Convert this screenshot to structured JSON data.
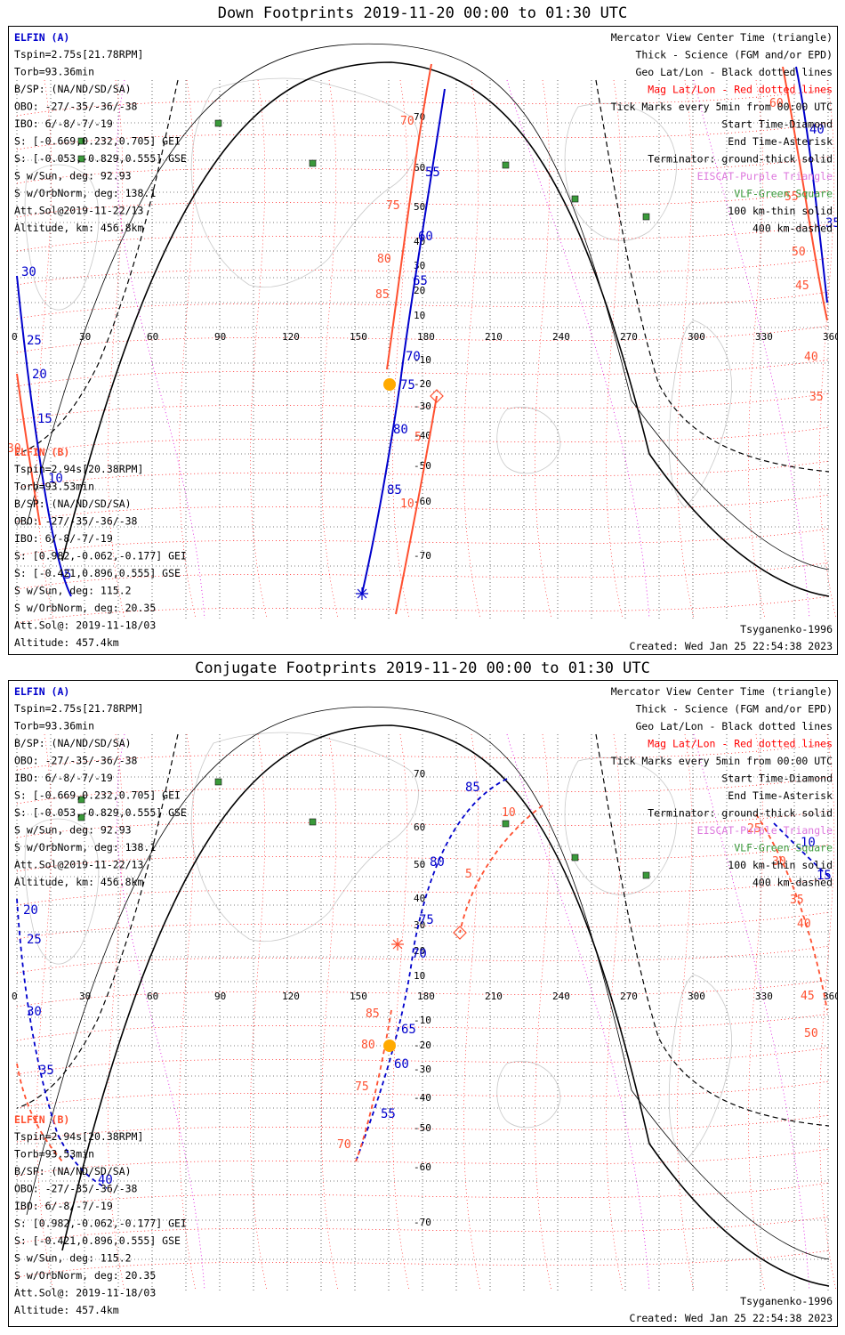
{
  "titles": {
    "top": "Down Footprints 2019-11-20 00:00 to 01:30 UTC",
    "bottom": "Conjugate Footprints 2019-11-20 00:00 to 01:30 UTC"
  },
  "colors": {
    "elfin_a": "#0000cc",
    "elfin_b": "#ff5030",
    "mag_grid": "#ff0000",
    "lshell": "#dd00dd",
    "station": "#3a9a3a",
    "sun_marker": "#ffaa00",
    "terminator": "#000000"
  },
  "info_a": {
    "name": "ELFIN (A)",
    "lines": [
      "Tspin=2.75s[21.78RPM]",
      "Torb=93.36min",
      "B/SP: (NA/ND/SD/SA)",
      "OBO: -27/-35/-36/-38",
      "IBO: 6/-8/-7/-19",
      "S: [-0.669,0.232,0.705] GEI",
      "S: [-0.053,-0.829,0.555] GSE",
      "S w/Sun, deg: 92.93",
      "S w/OrbNorm, deg: 138.1",
      "Att.Sol@2019-11-22/13",
      "Altitude, km: 456.8km"
    ]
  },
  "info_b": {
    "name": "ELFIN (B)",
    "lines": [
      "Tspin=2.94s[20.38RPM]",
      "Torb=93.53min",
      "B/SP: (NA/ND/SD/SA)",
      "OBO: -27/-35/-36/-38",
      "IBO: 6/-8/-7/-19",
      "S: [0.982,-0.062,-0.177] GEI",
      "S: [-0.421,0.896,0.555] GSE",
      "S w/Sun, deg: 115.2",
      "S w/OrbNorm, deg: 20.35",
      "Att.Sol@: 2019-11-18/03",
      "Altitude: 457.4km"
    ]
  },
  "legend": [
    {
      "text": "Mercator View Center Time (triangle)",
      "color": "#000000"
    },
    {
      "text": "Thick - Science (FGM and/or EPD)",
      "color": "#000000"
    },
    {
      "text": "Geo Lat/Lon - Black dotted lines",
      "color": "#000000"
    },
    {
      "text": "Mag Lat/Lon - Red dotted lines",
      "color": "#ff0000"
    },
    {
      "text": "Tick Marks every 5min from 00:00 UTC",
      "color": "#000000"
    },
    {
      "text": "Start Time-Diamond",
      "color": "#000000"
    },
    {
      "text": "End Time-Asterisk",
      "color": "#000000"
    },
    {
      "text": "Terminator: ground-thick solid",
      "color": "#000000"
    },
    {
      "text": "EISCAT-Purple Triangle",
      "color": "#dd77dd"
    },
    {
      "text": "VLF-Green Square",
      "color": "#3a9a3a"
    },
    {
      "text": "100 km-thin solid",
      "color": "#000000"
    },
    {
      "text": "400 km-dashed",
      "color": "#000000"
    }
  ],
  "footer": {
    "model": "Tsyganenko-1996",
    "created": "Created: Wed Jan 25 22:54:38 2023"
  },
  "axes": {
    "lon_ticks": [
      "0",
      "30",
      "60",
      "90",
      "120",
      "150",
      "180",
      "210",
      "240",
      "270",
      "300",
      "330",
      "360"
    ],
    "lat_ticks": [
      "70",
      "60",
      "50",
      "40",
      "30",
      "20",
      "10",
      "-10",
      "-20",
      "-30",
      "-40",
      "-50",
      "-60",
      "-70"
    ]
  },
  "down": {
    "a_labels": [
      "55",
      "60",
      "65",
      "70",
      "75",
      "80",
      "85",
      "30",
      "25",
      "20",
      "15",
      "10",
      "5",
      "35",
      "40"
    ],
    "b_labels": [
      "70",
      "75",
      "80",
      "85",
      "5",
      "10",
      "60",
      "55",
      "50",
      "45",
      "40",
      "35",
      "30"
    ]
  },
  "conj": {
    "a_labels": [
      "85",
      "80",
      "75",
      "70",
      "65",
      "60",
      "55",
      "20",
      "25",
      "30",
      "35",
      "40",
      "10",
      "15"
    ],
    "b_labels": [
      "10",
      "5",
      "85",
      "80",
      "75",
      "70",
      "25",
      "30",
      "35",
      "40",
      "45",
      "50"
    ]
  }
}
